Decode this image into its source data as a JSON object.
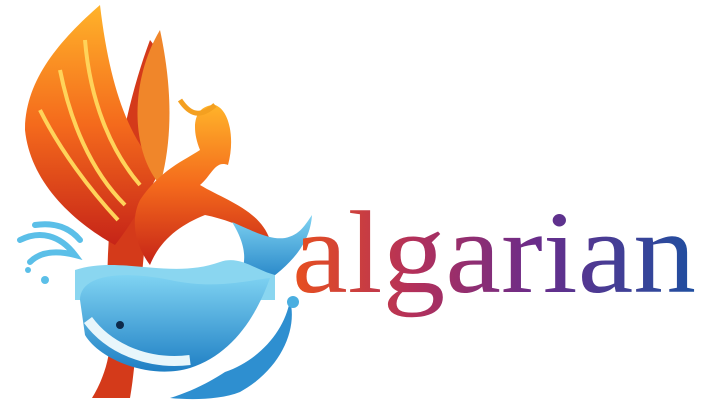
{
  "logo": {
    "text": "algarian"
  }
}
